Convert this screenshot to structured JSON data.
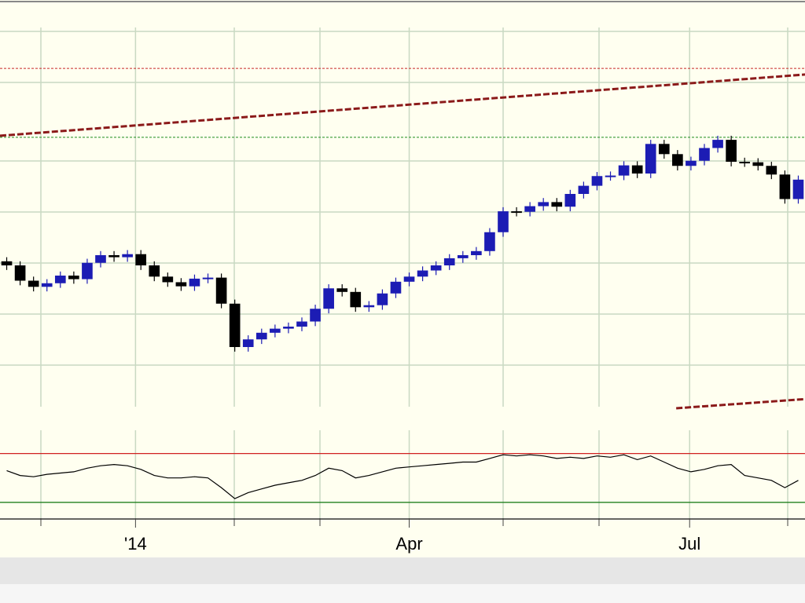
{
  "chart_data": [
    {
      "type": "candlestick",
      "xlim": [
        -0.5,
        59.5
      ],
      "ylim": [
        0,
        80
      ],
      "xticks": [
        {
          "value": 9.6,
          "label": "'14"
        },
        {
          "value": 30,
          "label": "Apr"
        },
        {
          "value": 50.9,
          "label": "Jul"
        }
      ],
      "up_color": "#1c1cb4",
      "down_color": "#000000",
      "open": [
        28.8,
        28.0,
        25.0,
        23.8,
        24.5,
        26.0,
        25.3,
        28.5,
        30.0,
        29.6,
        30.2,
        28.0,
        25.8,
        24.7,
        23.9,
        25.4,
        25.6,
        20.5,
        12.0,
        13.5,
        14.8,
        15.6,
        16.0,
        17.0,
        19.5,
        23.5,
        22.8,
        19.8,
        20.2,
        22.5,
        24.8,
        25.8,
        27.0,
        28.0,
        29.4,
        30.0,
        30.8,
        34.5,
        38.6,
        38.5,
        39.6,
        40.4,
        39.5,
        42.0,
        43.6,
        45.5,
        45.6,
        47.6,
        46.0,
        51.8,
        49.8,
        47.5,
        48.5,
        51.0,
        52.6,
        48.3,
        48.2,
        47.5,
        45.8,
        41.0
      ],
      "high": [
        29.6,
        28.8,
        25.8,
        25.3,
        26.8,
        26.8,
        29.3,
        30.8,
        30.8,
        31.0,
        31.0,
        28.8,
        26.6,
        25.5,
        26.2,
        26.4,
        26.4,
        21.3,
        14.3,
        15.6,
        16.4,
        16.8,
        17.8,
        20.3,
        24.3,
        24.3,
        23.6,
        21.0,
        23.3,
        25.6,
        26.6,
        27.8,
        28.8,
        30.2,
        30.8,
        31.6,
        35.3,
        39.4,
        39.4,
        40.4,
        41.2,
        41.2,
        42.8,
        44.4,
        46.3,
        46.4,
        48.4,
        48.4,
        52.6,
        52.6,
        50.6,
        49.3,
        51.8,
        53.4,
        53.4,
        49.1,
        49.0,
        48.3,
        46.6,
        45.6
      ],
      "low": [
        27.1,
        24.1,
        22.9,
        22.9,
        23.6,
        24.4,
        24.4,
        27.6,
        28.7,
        28.7,
        27.1,
        24.9,
        23.8,
        23.0,
        23.0,
        24.5,
        19.6,
        11.1,
        11.1,
        12.6,
        13.9,
        14.7,
        15.1,
        16.1,
        18.6,
        21.9,
        18.9,
        18.9,
        19.3,
        21.6,
        23.9,
        24.9,
        26.1,
        27.1,
        28.5,
        29.1,
        29.9,
        33.6,
        37.6,
        37.6,
        38.7,
        38.6,
        38.6,
        41.1,
        42.7,
        44.6,
        44.7,
        45.1,
        45.1,
        48.9,
        46.6,
        46.6,
        47.6,
        50.1,
        47.4,
        47.3,
        46.6,
        44.9,
        40.1,
        40.1
      ],
      "close": [
        28.0,
        25.0,
        23.8,
        24.5,
        26.0,
        25.3,
        28.5,
        30.0,
        29.6,
        30.2,
        28.0,
        25.8,
        24.7,
        23.9,
        25.4,
        25.6,
        20.5,
        12.0,
        13.5,
        14.8,
        15.6,
        16.0,
        17.0,
        19.5,
        23.5,
        22.8,
        19.8,
        20.2,
        22.5,
        24.8,
        25.8,
        27.0,
        28.0,
        29.4,
        30.0,
        30.8,
        34.5,
        38.6,
        38.5,
        39.6,
        40.4,
        39.5,
        42.0,
        43.6,
        45.5,
        45.6,
        47.6,
        46.0,
        51.8,
        49.8,
        47.5,
        48.5,
        51.0,
        52.6,
        48.3,
        48.2,
        47.5,
        45.8,
        41.0,
        44.8
      ],
      "hlines": [
        {
          "value": 66.6,
          "color": "#c82828"
        },
        {
          "value": 53.1,
          "color": "#1e8c1e"
        }
      ],
      "trendlines": [
        {
          "x": [
            -0.5,
            59.5
          ],
          "y": [
            53.4,
            65.4
          ],
          "color": "#8b1a1a"
        },
        {
          "x": [
            49.9,
            59.5
          ],
          "y": [
            0.0,
            1.8
          ],
          "color": "#8b1a1a"
        }
      ]
    },
    {
      "type": "line",
      "xlim": [
        -0.5,
        59.5
      ],
      "ylim": [
        17,
        91
      ],
      "color": "#000000",
      "values": [
        56,
        52,
        51,
        53,
        54,
        55,
        58,
        60,
        61,
        60,
        57,
        52,
        50,
        50,
        51,
        50,
        42,
        33,
        38,
        41,
        44,
        46,
        48,
        52,
        58,
        56,
        50,
        52,
        55,
        58,
        59,
        60,
        61,
        62,
        63,
        63,
        66,
        69,
        68,
        69,
        68,
        66,
        67,
        66,
        68,
        67,
        69,
        65,
        68,
        63,
        58,
        55,
        57,
        60,
        61,
        52,
        50,
        48,
        42,
        48
      ],
      "levels": [
        {
          "value": 70,
          "color": "#d02020"
        },
        {
          "value": 30,
          "color": "#208020"
        }
      ]
    }
  ]
}
